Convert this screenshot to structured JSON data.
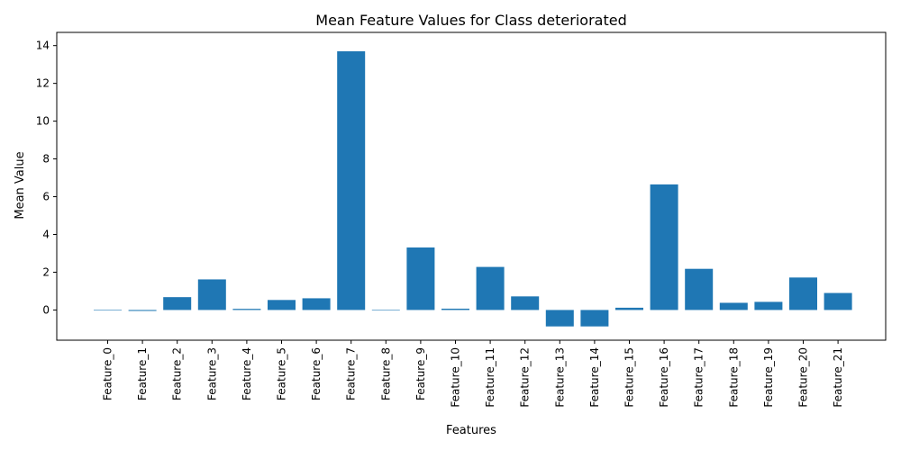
{
  "chart_data": {
    "type": "bar",
    "title": "Mean Feature Values for Class deteriorated",
    "xlabel": "Features",
    "ylabel": "Mean Value",
    "categories": [
      "Feature_0",
      "Feature_1",
      "Feature_2",
      "Feature_3",
      "Feature_4",
      "Feature_5",
      "Feature_6",
      "Feature_7",
      "Feature_8",
      "Feature_9",
      "Feature_10",
      "Feature_11",
      "Feature_12",
      "Feature_13",
      "Feature_14",
      "Feature_15",
      "Feature_16",
      "Feature_17",
      "Feature_18",
      "Feature_19",
      "Feature_20",
      "Feature_21"
    ],
    "values": [
      0.0,
      -0.05,
      0.68,
      1.62,
      0.06,
      0.53,
      0.62,
      13.7,
      0.0,
      3.31,
      0.07,
      2.28,
      0.72,
      -0.87,
      -0.87,
      0.12,
      6.65,
      2.18,
      0.38,
      0.43,
      1.72,
      0.9
    ],
    "ylim": [
      -1.6,
      14.7
    ],
    "yticks": [
      0,
      2,
      4,
      6,
      8,
      10,
      12,
      14
    ],
    "grid": false,
    "color": "#1f77b4"
  }
}
